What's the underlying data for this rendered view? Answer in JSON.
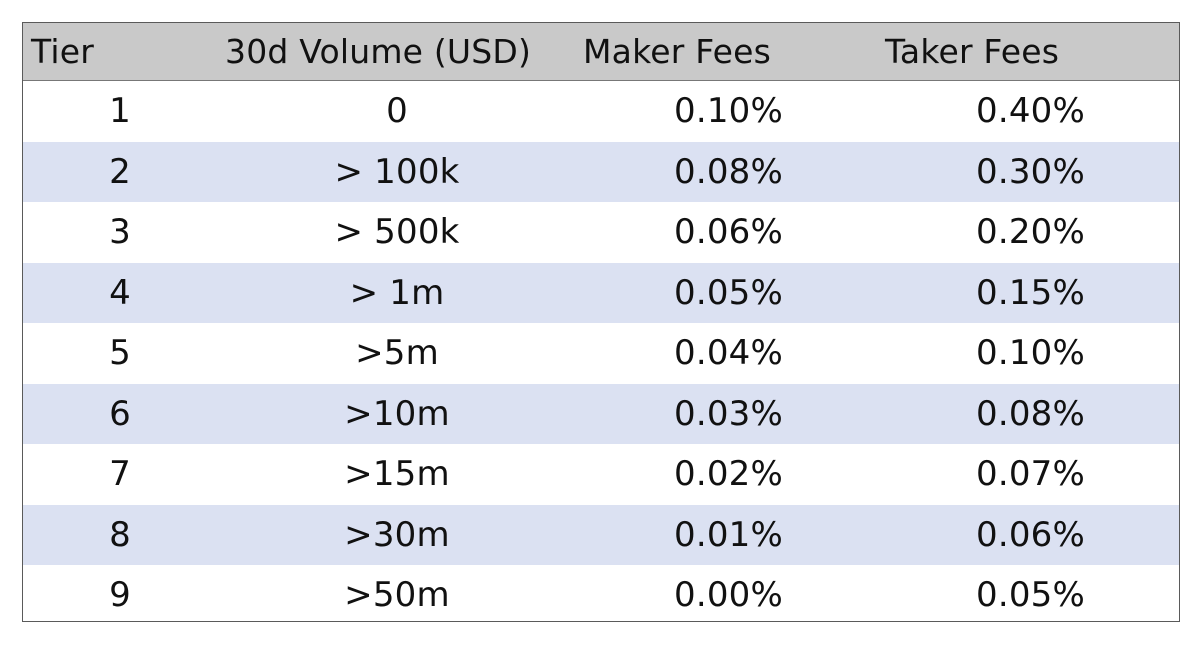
{
  "table": {
    "headers": {
      "tier": "Tier",
      "volume": "30d Volume (USD)",
      "maker": "Maker Fees",
      "taker": "Taker Fees"
    },
    "rows": [
      {
        "tier": "1",
        "volume": "0",
        "maker": "0.10%",
        "taker": "0.40%"
      },
      {
        "tier": "2",
        "volume": "> 100k",
        "maker": "0.08%",
        "taker": "0.30%"
      },
      {
        "tier": "3",
        "volume": "> 500k",
        "maker": "0.06%",
        "taker": "0.20%"
      },
      {
        "tier": "4",
        "volume": "> 1m",
        "maker": "0.05%",
        "taker": "0.15%"
      },
      {
        "tier": "5",
        "volume": ">5m",
        "maker": "0.04%",
        "taker": "0.10%"
      },
      {
        "tier": "6",
        "volume": ">10m",
        "maker": "0.03%",
        "taker": "0.08%"
      },
      {
        "tier": "7",
        "volume": ">15m",
        "maker": "0.02%",
        "taker": "0.07%"
      },
      {
        "tier": "8",
        "volume": ">30m",
        "maker": "0.01%",
        "taker": "0.06%"
      },
      {
        "tier": "9",
        "volume": ">50m",
        "maker": "0.00%",
        "taker": "0.05%"
      }
    ]
  },
  "colors": {
    "header_bg": "#c9c9c9",
    "band_bg": "#dbe1f2",
    "row_bg": "#ffffff",
    "border": "#5a5a5a"
  }
}
